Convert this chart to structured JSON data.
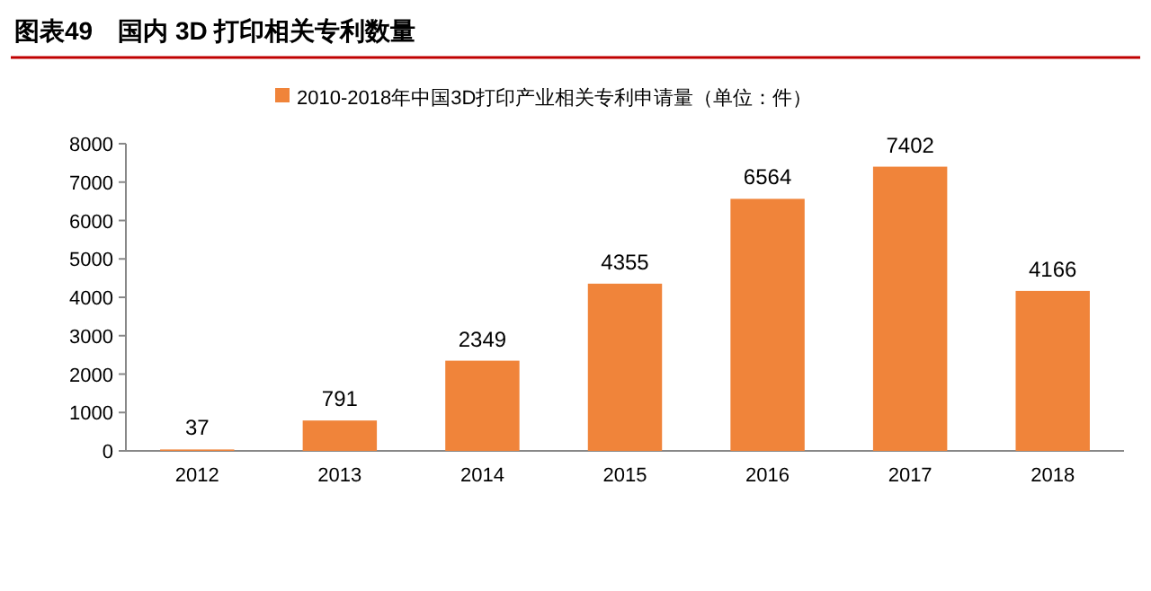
{
  "chart_data": {
    "type": "bar",
    "title": "图表49　国内 3D 打印相关专利数量",
    "categories": [
      "2012",
      "2013",
      "2014",
      "2015",
      "2016",
      "2017",
      "2018"
    ],
    "series": [
      {
        "name": "2010-2018年中国3D打印产业相关专利申请量（单位：件）",
        "color": "#f0843a",
        "values": [
          37,
          791,
          2349,
          4355,
          6564,
          7402,
          4166
        ]
      }
    ],
    "ylim": [
      0,
      8000
    ],
    "yticks": [
      0,
      1000,
      2000,
      3000,
      4000,
      5000,
      6000,
      7000,
      8000
    ],
    "data_labels": true,
    "legend": "top"
  }
}
